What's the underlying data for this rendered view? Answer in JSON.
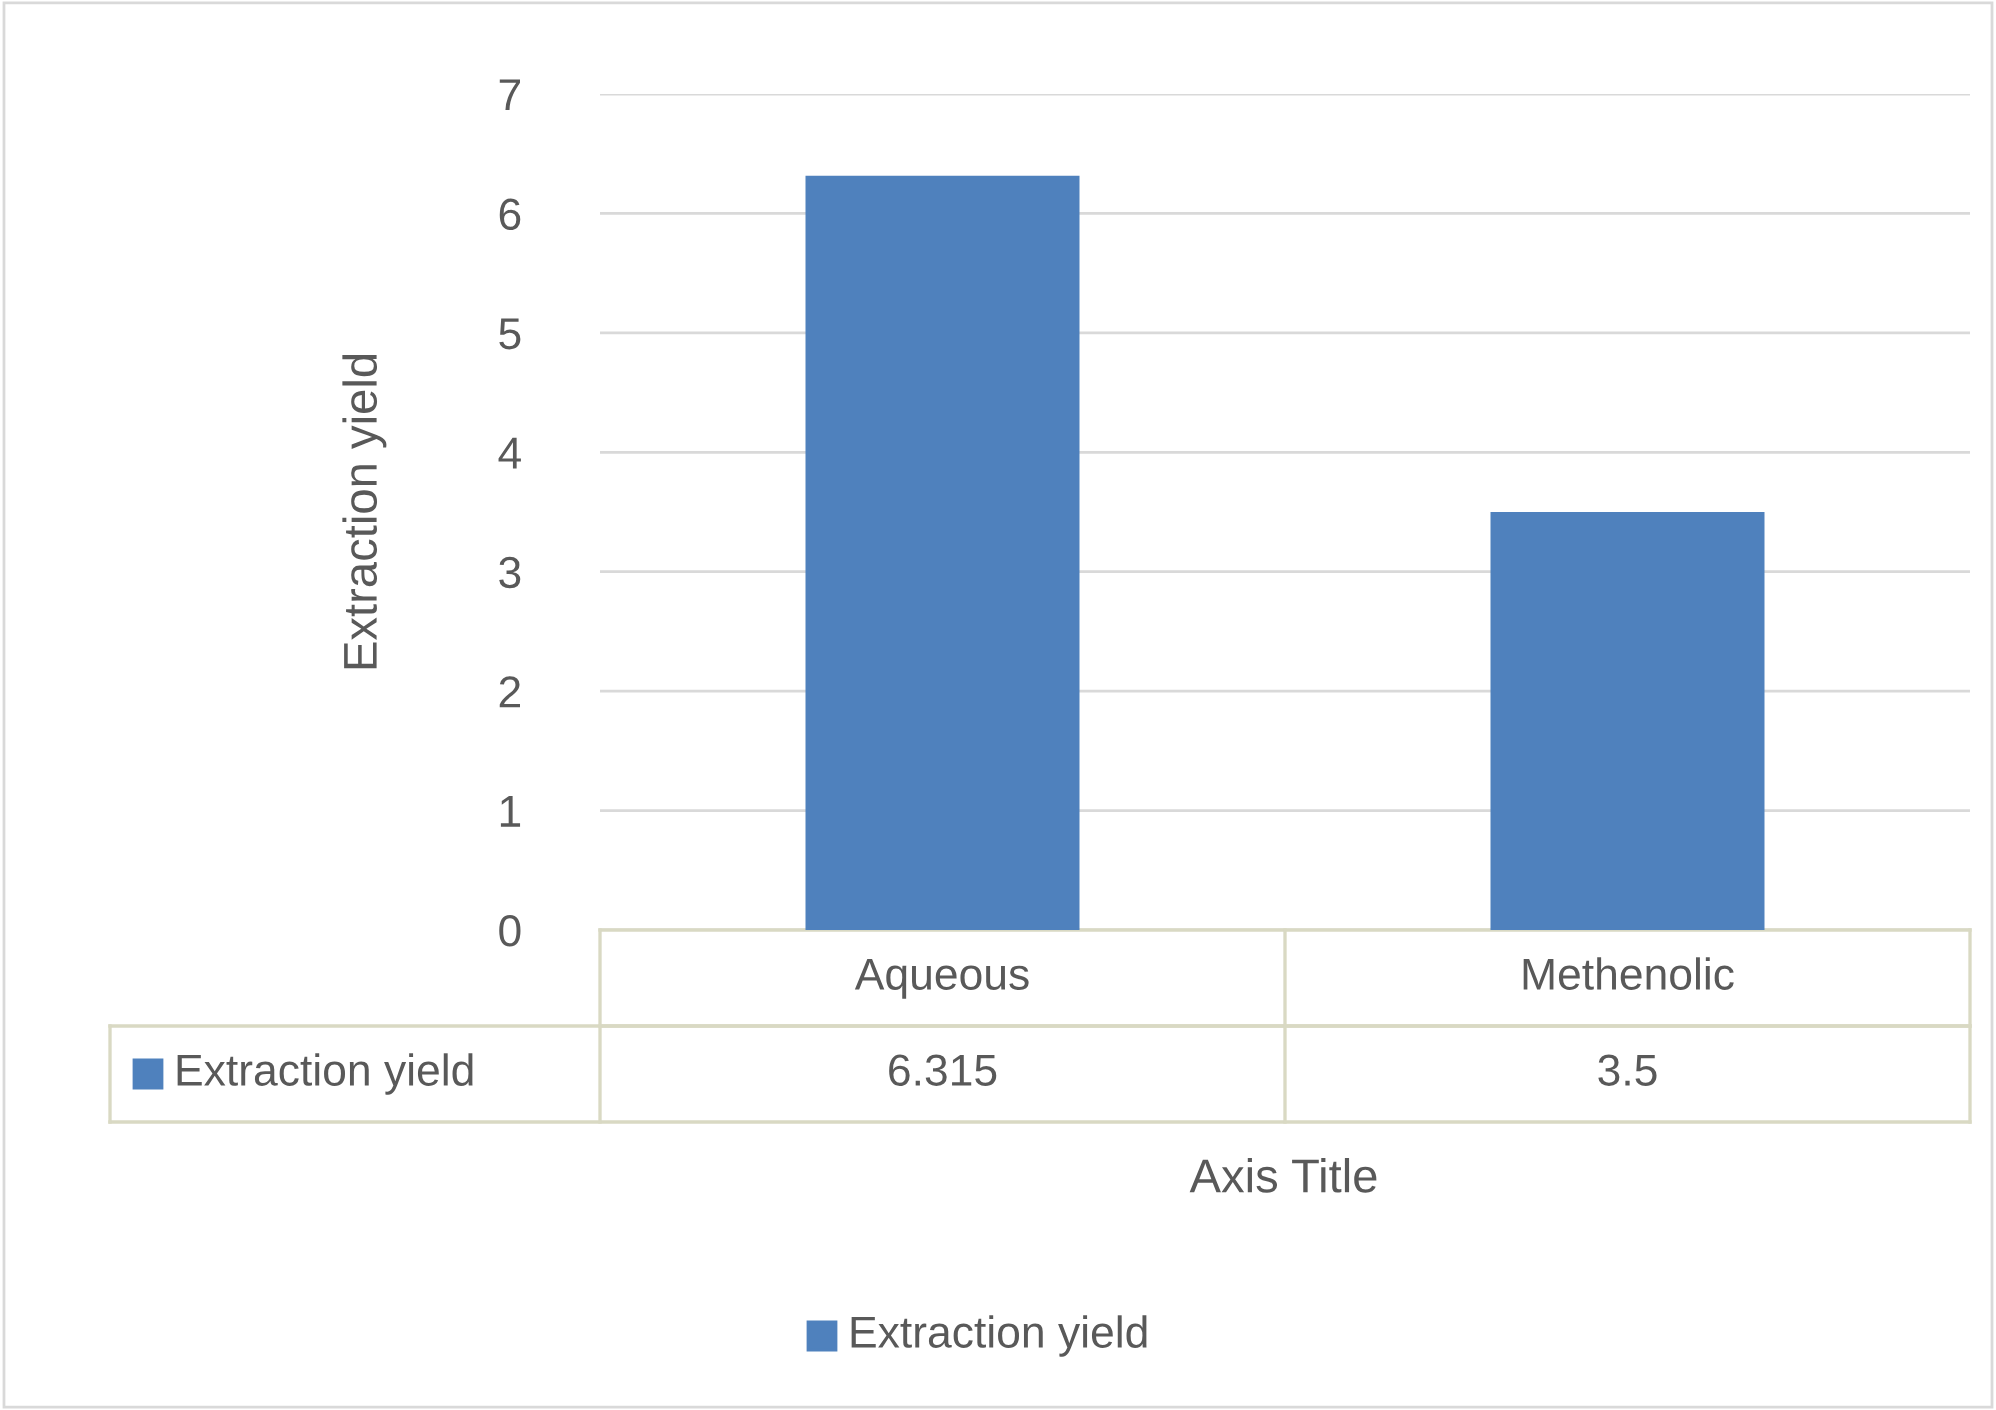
{
  "chart_data": {
    "type": "bar",
    "xlabel": "Axis Title",
    "ylabel": "Extraction yield",
    "categories": [
      "Aqueous",
      "Methenolic"
    ],
    "series": [
      {
        "name": "Extraction yield",
        "color": "#4f81bd",
        "values": [
          6.315,
          3.5
        ]
      }
    ],
    "ylim": [
      0,
      7
    ],
    "yticks": [
      0,
      1,
      2,
      3,
      4,
      5,
      6,
      7
    ],
    "grid": "y",
    "legend": "bottom",
    "data_labels": true
  }
}
